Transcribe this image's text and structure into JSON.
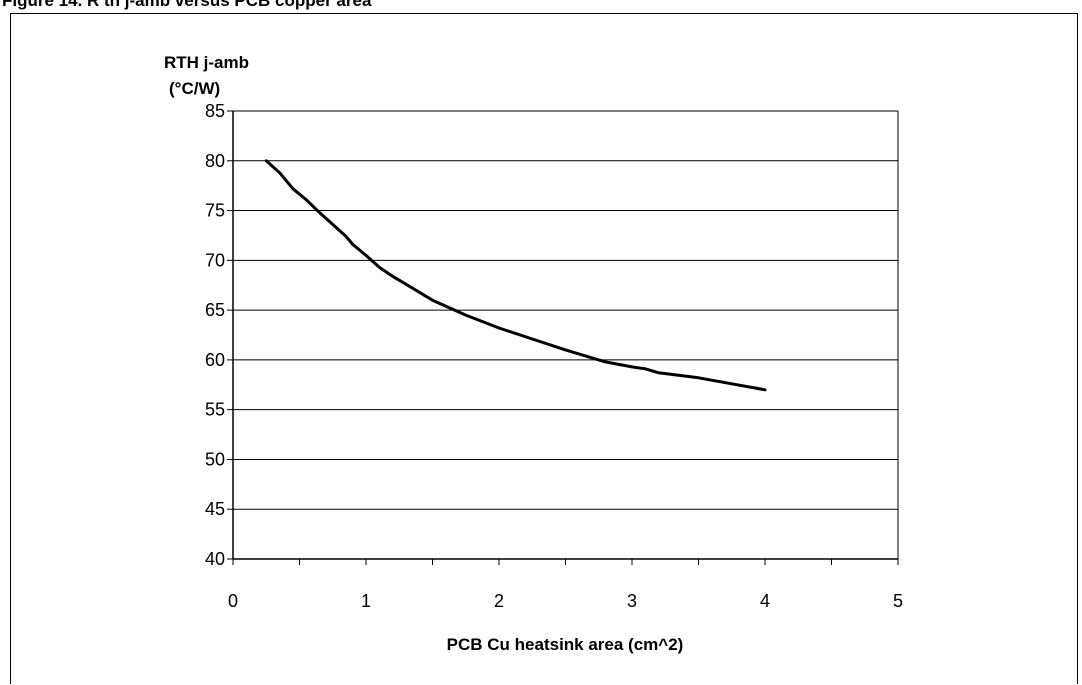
{
  "caption": "Figure 14. R th j-amb versus PCB copper area",
  "chart_data": {
    "type": "line",
    "title": "",
    "xlabel": "PCB Cu heatsink area (cm^2)",
    "ylabel_lines": [
      "RTH j-amb",
      "(°C/W)"
    ],
    "xlim": [
      0,
      5
    ],
    "ylim": [
      40,
      85
    ],
    "x_ticks": [
      0,
      1,
      2,
      3,
      4,
      5
    ],
    "y_ticks": [
      40,
      45,
      50,
      55,
      60,
      65,
      70,
      75,
      80,
      85
    ],
    "grid": "horizontal",
    "line_color": "#000000",
    "series": [
      {
        "x": [
          0.25,
          0.35,
          0.45,
          0.55,
          0.65,
          0.75,
          0.85,
          0.9,
          1.0,
          1.1,
          1.2,
          1.35,
          1.5,
          1.75,
          2.0,
          2.25,
          2.5,
          2.8,
          3.0,
          3.1,
          3.2,
          3.5,
          3.75,
          4.0
        ],
        "y": [
          80.0,
          78.8,
          77.2,
          76.1,
          74.8,
          73.6,
          72.4,
          71.6,
          70.5,
          69.3,
          68.4,
          67.2,
          66.0,
          64.5,
          63.2,
          62.1,
          61.0,
          59.8,
          59.3,
          59.1,
          58.7,
          58.2,
          57.6,
          57.0
        ]
      }
    ]
  }
}
